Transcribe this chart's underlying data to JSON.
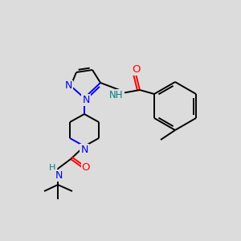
{
  "bg_color": "#dcdcdc",
  "atom_colors": {
    "N": "#0000ee",
    "O": "#ff0000",
    "C": "#000000",
    "H": "#008080"
  },
  "bond_lw": 1.4,
  "font_size": 9.0
}
